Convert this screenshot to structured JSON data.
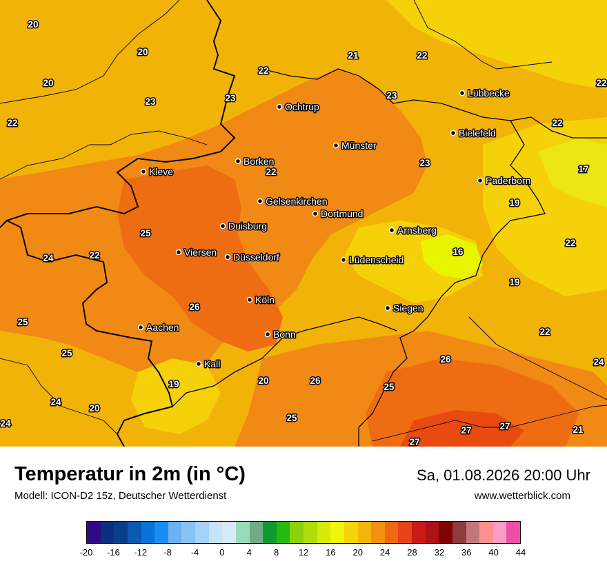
{
  "title": "Temperatur in 2m (in °C)",
  "model": "Modell: ICON-D2 15z, Deutscher Wetterdienst",
  "datetime": "Sa, 01.08.2026 20:00 Uhr",
  "website": "www.wetterblick.com",
  "colors": {
    "base": "#f2b308",
    "warm": "#f08a14",
    "warmer": "#ee6d12",
    "hot": "#e84a10",
    "cool": "#f5d10a",
    "cooler": "#ece415",
    "coolest": "#e8f500",
    "border": "#000000"
  },
  "cities": [
    {
      "name": "Lübbecke"
    },
    {
      "name": "Ochtrup"
    },
    {
      "name": "Bielefeld"
    },
    {
      "name": "Münster"
    },
    {
      "name": "Borken"
    },
    {
      "name": "Kleve"
    },
    {
      "name": "Paderborn"
    },
    {
      "name": "Gelsenkirchen"
    },
    {
      "name": "Dortmund"
    },
    {
      "name": "Duisburg"
    },
    {
      "name": "Arnsberg"
    },
    {
      "name": "Viersen"
    },
    {
      "name": "Düsseldorf"
    },
    {
      "name": "Lüdenscheid"
    },
    {
      "name": "Köln"
    },
    {
      "name": "Siegen"
    },
    {
      "name": "Aachen"
    },
    {
      "name": "Bonn"
    },
    {
      "name": "Kall"
    }
  ],
  "values": [
    "20",
    "20",
    "20",
    "21",
    "22",
    "22",
    "22",
    "23",
    "23",
    "23",
    "22",
    "22",
    "23",
    "17",
    "22",
    "19",
    "25",
    "24",
    "22",
    "16",
    "22",
    "19",
    "26",
    "25",
    "25",
    "22",
    "26",
    "24",
    "19",
    "20",
    "26",
    "25",
    "24",
    "20",
    "25",
    "27",
    "27",
    "24",
    "21",
    "27"
  ],
  "scale": {
    "ticks": [
      "-20",
      "-16",
      "-12",
      "-8",
      "-4",
      "0",
      "4",
      "8",
      "12",
      "16",
      "20",
      "24",
      "28",
      "32",
      "36",
      "40",
      "44"
    ],
    "colors": [
      "#2e0a85",
      "#0c2e7e",
      "#083f88",
      "#0b59b0",
      "#0a73d8",
      "#1a8ef0",
      "#6cb1f2",
      "#89c2f7",
      "#a4d2f8",
      "#c6e3fb",
      "#d6eafc",
      "#97dcb9",
      "#6fad88",
      "#0e9b2e",
      "#26b90d",
      "#8cd10c",
      "#b0dc0a",
      "#d6ec07",
      "#f0f50a",
      "#f5d40c",
      "#f4b60a",
      "#f29011",
      "#f06810",
      "#e64318",
      "#c81a16",
      "#ad1218",
      "#7f0505",
      "#8e3b3b",
      "#c27878",
      "#fd8f8f",
      "#fb9cc7",
      "#ec4fa8"
    ]
  }
}
